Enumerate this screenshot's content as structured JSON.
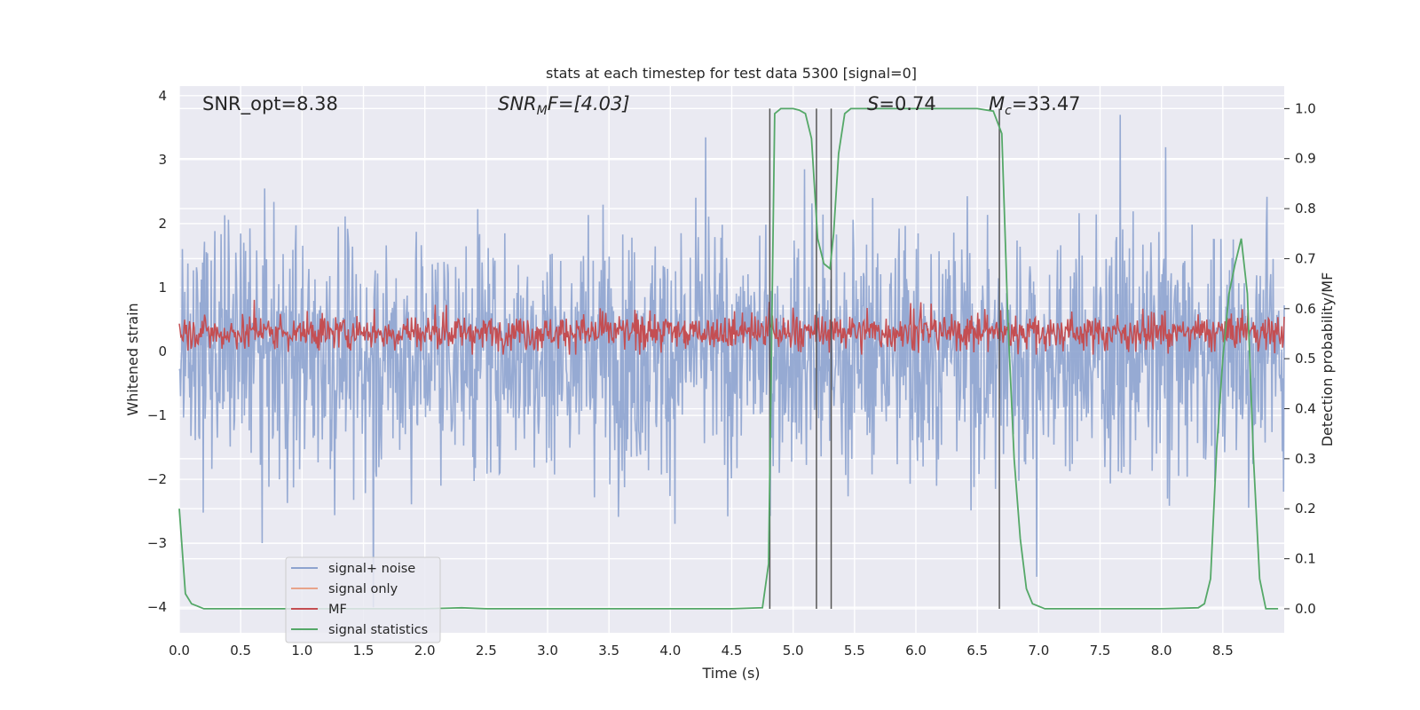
{
  "chart_data": {
    "type": "line",
    "title": "stats at each timestep for test data 5300 [signal=0]",
    "xlabel": "Time (s)",
    "ylabel_left": "Whitened strain",
    "ylabel_right": "Detection probability/MF",
    "xlim": [
      0,
      9
    ],
    "ylim_left": [
      -4.4,
      4.15
    ],
    "ylim_right": [
      -0.048,
      1.045
    ],
    "grid": true,
    "x_ticks": [
      "0.0",
      "0.5",
      "1.0",
      "1.5",
      "2.0",
      "2.5",
      "3.0",
      "3.5",
      "4.0",
      "4.5",
      "5.0",
      "5.5",
      "6.0",
      "6.5",
      "7.0",
      "7.5",
      "8.0",
      "8.5"
    ],
    "x_tick_values": [
      0,
      0.5,
      1,
      1.5,
      2,
      2.5,
      3,
      3.5,
      4,
      4.5,
      5,
      5.5,
      6,
      6.5,
      7,
      7.5,
      8,
      8.5
    ],
    "y_left_ticks": [
      "4",
      "3",
      "2",
      "1",
      "0",
      "−1",
      "−2",
      "−3",
      "−4"
    ],
    "y_left_tick_values": [
      4,
      3,
      2,
      1,
      0,
      -1,
      -2,
      -3,
      -4
    ],
    "y_right_ticks": [
      "1.0",
      "0.9",
      "0.8",
      "0.7",
      "0.6",
      "0.5",
      "0.4",
      "0.3",
      "0.2",
      "0.1",
      "0.0"
    ],
    "y_right_tick_values": [
      1.0,
      0.9,
      0.8,
      0.7,
      0.6,
      0.5,
      0.4,
      0.3,
      0.2,
      0.1,
      0.0
    ],
    "annotations": {
      "snr_opt": "SNR_opt=8.38",
      "snr_mf_italic": "SNR",
      "snr_mf_sub": "M",
      "snr_mf_rest": "F=[4.03]",
      "s_italic": "S",
      "s_rest": "=0.74",
      "mc_italic": "M",
      "mc_sub": "c",
      "mc_rest": "=33.47"
    },
    "legend": {
      "placement": "lower-left",
      "entries": [
        {
          "label": "signal+ noise",
          "color": "#8da3cf"
        },
        {
          "label": "signal only",
          "color": "#e8a48a"
        },
        {
          "label": "MF",
          "color": "#c44e52"
        },
        {
          "label": "signal statistics",
          "color": "#55a868"
        }
      ]
    },
    "vertical_lines_x": [
      4.81,
      5.19,
      5.31,
      6.68
    ],
    "series": [
      {
        "name": "signal statistics",
        "axis": "right",
        "color": "#55a868",
        "x": [
          0.0,
          0.05,
          0.1,
          0.15,
          0.2,
          0.3,
          0.5,
          1.0,
          1.5,
          2.0,
          2.3,
          2.5,
          3.0,
          3.5,
          4.0,
          4.5,
          4.75,
          4.8,
          4.85,
          4.9,
          4.95,
          5.0,
          5.05,
          5.1,
          5.15,
          5.2,
          5.25,
          5.3,
          5.33,
          5.37,
          5.42,
          5.47,
          5.5,
          6.0,
          6.5,
          6.63,
          6.7,
          6.75,
          6.8,
          6.85,
          6.9,
          6.95,
          7.0,
          7.05,
          7.1,
          7.2,
          7.5,
          8.0,
          8.3,
          8.35,
          8.4,
          8.45,
          8.5,
          8.55,
          8.6,
          8.65,
          8.7,
          8.75,
          8.8,
          8.85,
          8.9,
          8.95
        ],
        "y": [
          0.2,
          0.03,
          0.01,
          0.005,
          0.0,
          0.0,
          0.0,
          0.0,
          0.0,
          0.0,
          0.002,
          0.0,
          0.0,
          0.0,
          0.0,
          0.0,
          0.002,
          0.09,
          0.99,
          1.0,
          1.0,
          1.0,
          0.997,
          0.99,
          0.94,
          0.74,
          0.69,
          0.68,
          0.75,
          0.91,
          0.99,
          1.0,
          1.0,
          1.0,
          1.0,
          0.995,
          0.95,
          0.57,
          0.3,
          0.14,
          0.04,
          0.01,
          0.005,
          0.0,
          0.0,
          0.0,
          0.0,
          0.0,
          0.002,
          0.01,
          0.06,
          0.32,
          0.5,
          0.63,
          0.69,
          0.74,
          0.63,
          0.3,
          0.06,
          0.0,
          0.0,
          0.0
        ]
      }
    ],
    "noise_series_note": "",
    "mf_series_note": ""
  }
}
